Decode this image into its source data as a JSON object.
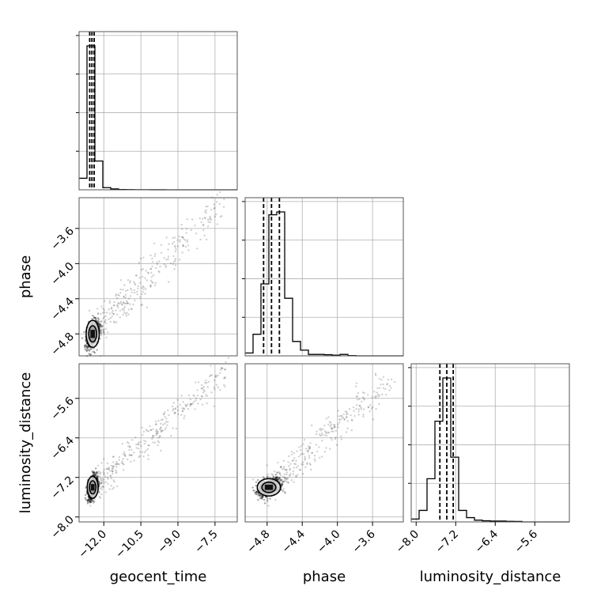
{
  "chart_data": {
    "type": "corner",
    "parameters": [
      "geocent_time",
      "phase",
      "luminosity_distance"
    ],
    "grid": true,
    "histograms": [
      {
        "parameter": "geocent_time",
        "range": [
          -13.0,
          -6.6
        ],
        "bin_edges": [
          -13.0,
          -12.68,
          -12.36,
          -12.04,
          -11.72,
          -11.4,
          -11.08,
          -10.76,
          -10.44,
          -10.12,
          -9.8,
          -9.48,
          -9.16,
          -8.84,
          -8.52,
          -8.2,
          -7.88,
          -7.56,
          -7.24,
          -6.92,
          -6.6
        ],
        "counts": [
          0.08,
          1.0,
          0.2,
          0.015,
          0.006,
          0.002,
          0.001,
          0.0005,
          0.0005,
          0.0003,
          0.0003,
          0.0002,
          0.0002,
          0.0001,
          0.0001,
          0.0001,
          0.0001,
          0.0,
          0.0,
          0.0
        ],
        "quantiles": [
          -12.57,
          -12.48,
          -12.39
        ]
      },
      {
        "parameter": "phase",
        "range": [
          -5.05,
          -3.25
        ],
        "bin_edges": [
          -5.05,
          -4.96,
          -4.87,
          -4.78,
          -4.69,
          -4.6,
          -4.51,
          -4.42,
          -4.33,
          -4.24,
          -4.15,
          -4.06,
          -3.97,
          -3.88,
          -3.79,
          -3.7,
          -3.61,
          -3.52,
          -3.43,
          -3.34,
          -3.25
        ],
        "counts": [
          0.02,
          0.15,
          0.5,
          0.98,
          1.0,
          0.4,
          0.1,
          0.04,
          0.01,
          0.01,
          0.008,
          0.005,
          0.01,
          0.002,
          0.0,
          0.0,
          0.0,
          0.0,
          0.0,
          0.0
        ],
        "quantiles": [
          -4.84,
          -4.75,
          -4.66
        ]
      },
      {
        "parameter": "luminosity_distance",
        "range": [
          -8.1,
          -4.9
        ],
        "bin_edges": [
          -8.1,
          -7.94,
          -7.78,
          -7.62,
          -7.46,
          -7.3,
          -7.14,
          -6.98,
          -6.82,
          -6.66,
          -6.5,
          -6.34,
          -6.18,
          -6.02,
          -5.86,
          -5.7,
          -5.54,
          -5.38,
          -5.22,
          -5.06,
          -4.9
        ],
        "counts": [
          0.02,
          0.08,
          0.3,
          0.7,
          1.0,
          0.45,
          0.08,
          0.03,
          0.012,
          0.008,
          0.006,
          0.006,
          0.004,
          0.003,
          0.0,
          0.0,
          0.0,
          0.0,
          0.0,
          0.0
        ],
        "quantiles": [
          -7.52,
          -7.38,
          -7.25
        ]
      }
    ],
    "ticks": {
      "geocent_time": [
        -12.0,
        -10.5,
        -9.0,
        -7.5
      ],
      "phase": [
        -4.8,
        -4.4,
        -4.0,
        -3.6
      ],
      "luminosity_distance": [
        -8.0,
        -7.2,
        -6.4,
        -5.6
      ]
    },
    "tick_labels": {
      "geocent_time": [
        "−12.0",
        "−10.5",
        "−9.0",
        "−7.5"
      ],
      "phase": [
        "−4.8",
        "−4.4",
        "−4.0",
        "−3.6"
      ],
      "luminosity_distance": [
        "−8.0",
        "−7.2",
        "−6.4",
        "−5.6"
      ]
    },
    "scatter_2d": [
      {
        "x_param": "geocent_time",
        "y_param": "phase",
        "peak": [
          -12.45,
          -4.8
        ],
        "core_spread": [
          0.12,
          0.07
        ],
        "trend_end": [
          -7.2,
          -3.3
        ]
      },
      {
        "x_param": "geocent_time",
        "y_param": "luminosity_distance",
        "peak": [
          -12.45,
          -7.4
        ],
        "core_spread": [
          0.1,
          0.1
        ],
        "trend_end": [
          -7.0,
          -5.0
        ]
      },
      {
        "x_param": "phase",
        "y_param": "luminosity_distance",
        "peak": [
          -4.78,
          -7.4
        ],
        "core_spread": [
          0.06,
          0.08
        ],
        "trend_end": [
          -3.4,
          -5.2
        ]
      }
    ],
    "colors": {
      "line": "#000000",
      "grid": "#b0b0b0",
      "points": "#000000"
    }
  }
}
